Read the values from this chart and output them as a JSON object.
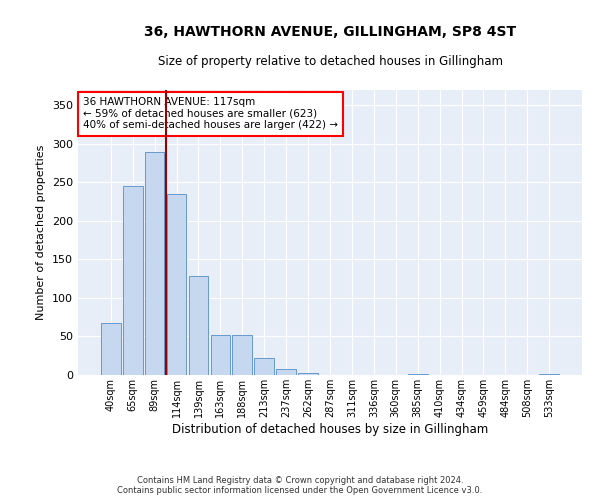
{
  "title": "36, HAWTHORN AVENUE, GILLINGHAM, SP8 4ST",
  "subtitle": "Size of property relative to detached houses in Gillingham",
  "xlabel": "Distribution of detached houses by size in Gillingham",
  "ylabel": "Number of detached properties",
  "bar_color": "#c5d8f0",
  "bar_edge_color": "#6699cc",
  "categories": [
    "40sqm",
    "65sqm",
    "89sqm",
    "114sqm",
    "139sqm",
    "163sqm",
    "188sqm",
    "213sqm",
    "237sqm",
    "262sqm",
    "287sqm",
    "311sqm",
    "336sqm",
    "360sqm",
    "385sqm",
    "410sqm",
    "434sqm",
    "459sqm",
    "484sqm",
    "508sqm",
    "533sqm"
  ],
  "values": [
    68,
    245,
    290,
    235,
    128,
    52,
    52,
    22,
    8,
    2,
    0,
    0,
    0,
    0,
    1,
    0,
    0,
    0,
    0,
    0,
    1
  ],
  "ylim": [
    0,
    370
  ],
  "yticks": [
    0,
    50,
    100,
    150,
    200,
    250,
    300,
    350
  ],
  "property_line_x": 2.5,
  "annotation_text": "36 HAWTHORN AVENUE: 117sqm\n← 59% of detached houses are smaller (623)\n40% of semi-detached houses are larger (422) →",
  "annotation_box_color": "white",
  "annotation_box_edge_color": "red",
  "property_line_color": "#990000",
  "bg_color": "#e8eef8",
  "footer_line1": "Contains HM Land Registry data © Crown copyright and database right 2024.",
  "footer_line2": "Contains public sector information licensed under the Open Government Licence v3.0."
}
